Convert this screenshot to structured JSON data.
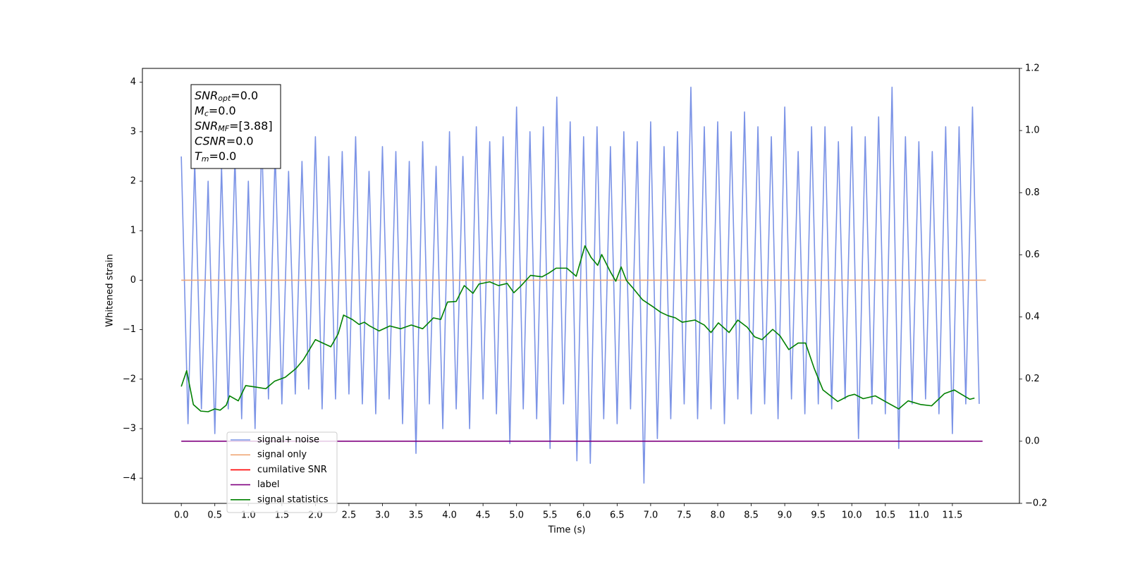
{
  "chart_data": {
    "type": "line",
    "xlabel": "Time (s)",
    "ylabel": "Whitened strain",
    "xlim": [
      -0.58,
      12.5
    ],
    "ylim": [
      -4.51,
      4.28
    ],
    "y2lim": [
      -0.2,
      1.2
    ],
    "xticks": [
      {
        "value": 0,
        "label": "0.0"
      },
      0.5,
      {
        "value": 1,
        "label": "1.0"
      },
      1.5,
      {
        "value": 2,
        "label": "2.0"
      },
      2.5,
      {
        "value": 3,
        "label": "3.0"
      },
      3.5,
      {
        "value": 4,
        "label": "4.0"
      },
      4.5,
      {
        "value": 5,
        "label": "5.0"
      },
      5.5,
      {
        "value": 6,
        "label": "6.0"
      },
      6.5,
      {
        "value": 7,
        "label": "7.0"
      },
      7.5,
      {
        "value": 8,
        "label": "8.0"
      },
      8.5,
      {
        "value": 9,
        "label": "9.0"
      },
      9.5,
      {
        "value": 10,
        "label": "10.0"
      },
      10.5,
      {
        "value": 11,
        "label": "11.0"
      },
      11.5
    ],
    "yticks": [
      {
        "value": -4,
        "label": "−4"
      },
      {
        "value": -3,
        "label": "−3"
      },
      {
        "value": -2,
        "label": "−2"
      },
      {
        "value": -1,
        "label": "−1"
      },
      0,
      1,
      2,
      3,
      4
    ],
    "y2ticks": [
      {
        "value": -0.2,
        "label": "−0.2"
      },
      {
        "value": 0,
        "label": "0.0"
      },
      0.2,
      0.4,
      0.6,
      0.8,
      {
        "value": 1,
        "label": "1.0"
      },
      1.2
    ],
    "legend": "lower left",
    "annotations": [
      {
        "base": "SNR",
        "sub": "opt",
        "text": "=0.0"
      },
      {
        "base": "M",
        "sub": "c",
        "text": "=0.0"
      },
      {
        "base": "SNR",
        "sub": "MF",
        "text": "=[3.88]"
      },
      {
        "base": "CSNR",
        "text": "=0.0"
      },
      {
        "base": "T",
        "sub": "m",
        "text": "=0.0"
      }
    ],
    "series": [
      {
        "name": "signal+ noise",
        "color": "#7b93e6",
        "x": [
          0.0,
          0.1,
          0.2,
          0.3,
          0.4,
          0.5,
          0.6,
          0.7,
          0.8,
          0.9,
          1.0,
          1.1,
          1.2,
          1.3,
          1.4,
          1.5,
          1.6,
          1.7,
          1.8,
          1.9,
          2.0,
          2.1,
          2.2,
          2.3,
          2.4,
          2.5,
          2.6,
          2.7,
          2.8,
          2.9,
          3.0,
          3.1,
          3.2,
          3.3,
          3.4,
          3.5,
          3.6,
          3.7,
          3.8,
          3.9,
          4.0,
          4.1,
          4.2,
          4.3,
          4.4,
          4.5,
          4.6,
          4.7,
          4.8,
          4.9,
          5.0,
          5.1,
          5.2,
          5.3,
          5.4,
          5.5,
          5.6,
          5.7,
          5.8,
          5.9,
          6.0,
          6.1,
          6.2,
          6.3,
          6.4,
          6.5,
          6.6,
          6.7,
          6.8,
          6.9,
          7.0,
          7.1,
          7.2,
          7.3,
          7.4,
          7.5,
          7.6,
          7.7,
          7.8,
          7.9,
          8.0,
          8.1,
          8.2,
          8.3,
          8.4,
          8.5,
          8.6,
          8.7,
          8.8,
          8.9,
          9.0,
          9.1,
          9.2,
          9.3,
          9.4,
          9.5,
          9.6,
          9.7,
          9.8,
          9.9,
          10.0,
          10.1,
          10.2,
          10.3,
          10.4,
          10.5,
          10.6,
          10.7,
          10.8,
          10.9,
          11.0,
          11.1,
          11.2,
          11.3,
          11.4,
          11.5,
          11.6,
          11.7,
          11.8,
          11.9
        ],
        "values": [
          2.5,
          -2.9,
          2.4,
          -2.6,
          2.0,
          -3.1,
          2.3,
          -2.6,
          2.5,
          -2.8,
          2.0,
          -3.0,
          2.9,
          -2.4,
          2.6,
          -2.5,
          2.2,
          -2.3,
          2.4,
          -2.2,
          2.9,
          -2.6,
          2.5,
          -2.4,
          2.6,
          -2.3,
          2.9,
          -2.5,
          2.2,
          -2.7,
          2.7,
          -2.4,
          2.6,
          -2.9,
          2.4,
          -3.5,
          2.8,
          -2.5,
          2.3,
          -3.0,
          3.0,
          -2.6,
          2.5,
          -3.0,
          3.1,
          -2.4,
          2.8,
          -2.7,
          2.9,
          -3.3,
          3.5,
          -2.6,
          3.0,
          -2.8,
          3.1,
          -3.4,
          3.7,
          -2.5,
          3.2,
          -3.65,
          2.9,
          -3.7,
          3.1,
          -2.8,
          2.7,
          -2.9,
          3.0,
          -2.6,
          2.8,
          -4.1,
          3.2,
          -3.2,
          2.7,
          -2.8,
          3.0,
          -2.5,
          3.9,
          -2.8,
          3.1,
          -2.6,
          3.2,
          -2.9,
          3.0,
          -2.4,
          3.4,
          -2.7,
          3.1,
          -2.5,
          2.9,
          -2.8,
          3.5,
          -2.4,
          2.6,
          -2.7,
          3.1,
          -2.5,
          3.1,
          -2.6,
          2.8,
          -2.4,
          3.1,
          -3.2,
          2.9,
          -2.5,
          3.3,
          -2.7,
          3.9,
          -3.4,
          2.9,
          -2.5,
          2.8,
          -2.4,
          2.6,
          -2.7,
          3.1,
          -3.1,
          3.1,
          -2.5,
          3.5,
          -2.5
        ]
      },
      {
        "name": "signal only",
        "color": "#f0a878",
        "x": [
          0,
          12
        ],
        "values": [
          0,
          0
        ]
      },
      {
        "name": "cumilative SNR",
        "color": "#ff0000",
        "x": [],
        "values": []
      },
      {
        "name": "label",
        "color": "#800080",
        "axis": "y2",
        "x": [
          0,
          11.95
        ],
        "values": [
          0,
          0
        ]
      },
      {
        "name": "signal statistics",
        "color": "#008000",
        "axis": "y2",
        "x": [
          0,
          0.08,
          0.18,
          0.29,
          0.4,
          0.5,
          0.58,
          0.67,
          0.72,
          0.85,
          0.96,
          1.12,
          1.26,
          1.39,
          1.55,
          1.71,
          1.82,
          2.0,
          2.11,
          2.23,
          2.34,
          2.42,
          2.55,
          2.65,
          2.73,
          2.81,
          2.95,
          3.11,
          3.27,
          3.43,
          3.6,
          3.76,
          3.87,
          3.97,
          4.1,
          4.22,
          4.35,
          4.44,
          4.6,
          4.73,
          4.86,
          4.96,
          5.07,
          5.21,
          5.38,
          5.48,
          5.59,
          5.75,
          5.89,
          6.02,
          6.11,
          6.21,
          6.27,
          6.4,
          6.48,
          6.56,
          6.64,
          6.74,
          6.88,
          7.04,
          7.15,
          7.26,
          7.37,
          7.47,
          7.66,
          7.8,
          7.9,
          8.01,
          8.17,
          8.3,
          8.44,
          8.55,
          8.66,
          8.82,
          8.93,
          9.06,
          9.2,
          9.31,
          9.44,
          9.57,
          9.79,
          9.95,
          10.04,
          10.17,
          10.35,
          10.54,
          10.7,
          10.84,
          11.03,
          11.19,
          11.38,
          11.53,
          11.62,
          11.76,
          11.83
        ],
        "values": [
          0.176,
          0.227,
          0.118,
          0.097,
          0.095,
          0.104,
          0.1,
          0.116,
          0.146,
          0.13,
          0.179,
          0.174,
          0.169,
          0.193,
          0.206,
          0.234,
          0.262,
          0.327,
          0.316,
          0.304,
          0.346,
          0.406,
          0.392,
          0.376,
          0.383,
          0.371,
          0.355,
          0.371,
          0.362,
          0.374,
          0.362,
          0.397,
          0.392,
          0.448,
          0.45,
          0.501,
          0.476,
          0.506,
          0.513,
          0.501,
          0.508,
          0.478,
          0.501,
          0.534,
          0.529,
          0.541,
          0.557,
          0.557,
          0.531,
          0.629,
          0.592,
          0.566,
          0.601,
          0.545,
          0.515,
          0.561,
          0.517,
          0.492,
          0.455,
          0.432,
          0.415,
          0.404,
          0.397,
          0.383,
          0.39,
          0.374,
          0.35,
          0.381,
          0.35,
          0.39,
          0.367,
          0.336,
          0.327,
          0.36,
          0.339,
          0.295,
          0.316,
          0.316,
          0.234,
          0.165,
          0.128,
          0.146,
          0.151,
          0.137,
          0.146,
          0.123,
          0.104,
          0.13,
          0.118,
          0.114,
          0.153,
          0.165,
          0.153,
          0.135,
          0.139
        ]
      }
    ]
  }
}
